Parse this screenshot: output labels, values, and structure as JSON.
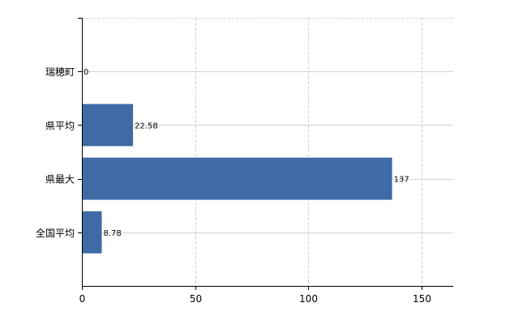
{
  "chart_data": {
    "type": "bar",
    "orientation": "horizontal",
    "categories": [
      "瑞穂町",
      "県平均",
      "県最大",
      "全国平均"
    ],
    "values": [
      0,
      22.58,
      137,
      8.78
    ],
    "data_labels": [
      "0",
      "22.58",
      "137",
      "8.78"
    ],
    "title": "",
    "xlabel": "",
    "ylabel": "",
    "xlim": [
      0,
      164
    ],
    "xticks": [
      0,
      50,
      100,
      150
    ],
    "grid": true,
    "legend": "none",
    "colors": {
      "bar": "#3e6aa6",
      "grid": "#d3d3d3",
      "axis": "#000000"
    }
  }
}
